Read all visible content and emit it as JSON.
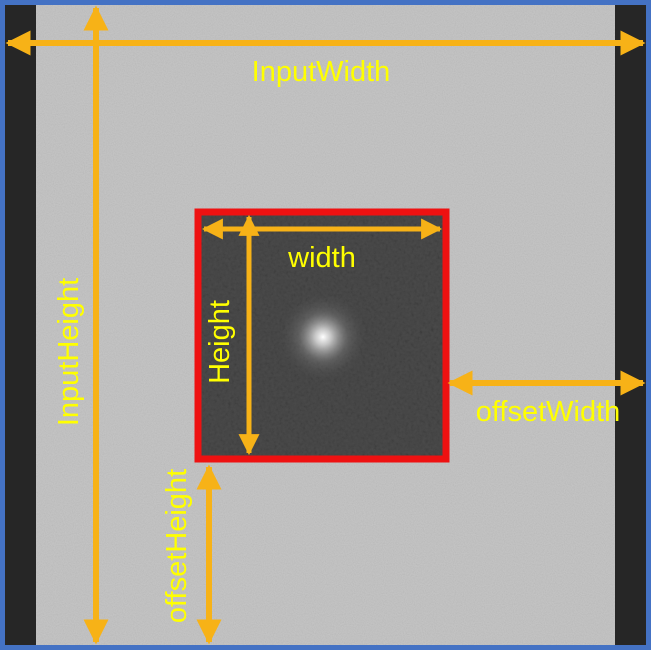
{
  "labels": {
    "input_width": "InputWidth",
    "input_height": "InputHeight",
    "width": "width",
    "height": "Height",
    "offset_width": "offsetWidth",
    "offset_height": "offsetHeight"
  },
  "colors": {
    "frame_border": "#4472c4",
    "side_band": "#262626",
    "background": "#c6c6c6",
    "crop_box": "#ee1111",
    "crop_fill": "#4b4b4b",
    "arrow": "#f7b217",
    "label": "#ffff00"
  }
}
